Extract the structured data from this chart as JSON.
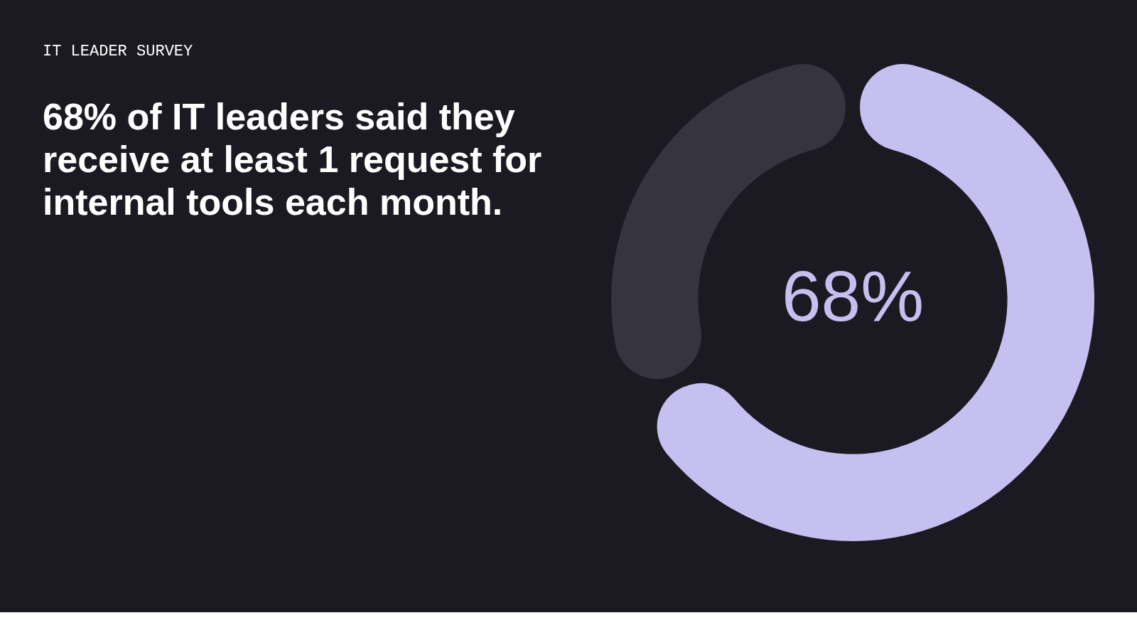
{
  "chart_data": {
    "type": "donut",
    "subtitle": "IT LEADER SURVEY",
    "title": "68% of IT leaders said they receive at least 1 request for internal tools each month.",
    "categories": [
      null,
      null
    ],
    "values": [
      68,
      32
    ],
    "colors": [
      "#c5c0f0",
      "#36343f"
    ],
    "value_labels": [
      "68%",
      null
    ]
  }
}
